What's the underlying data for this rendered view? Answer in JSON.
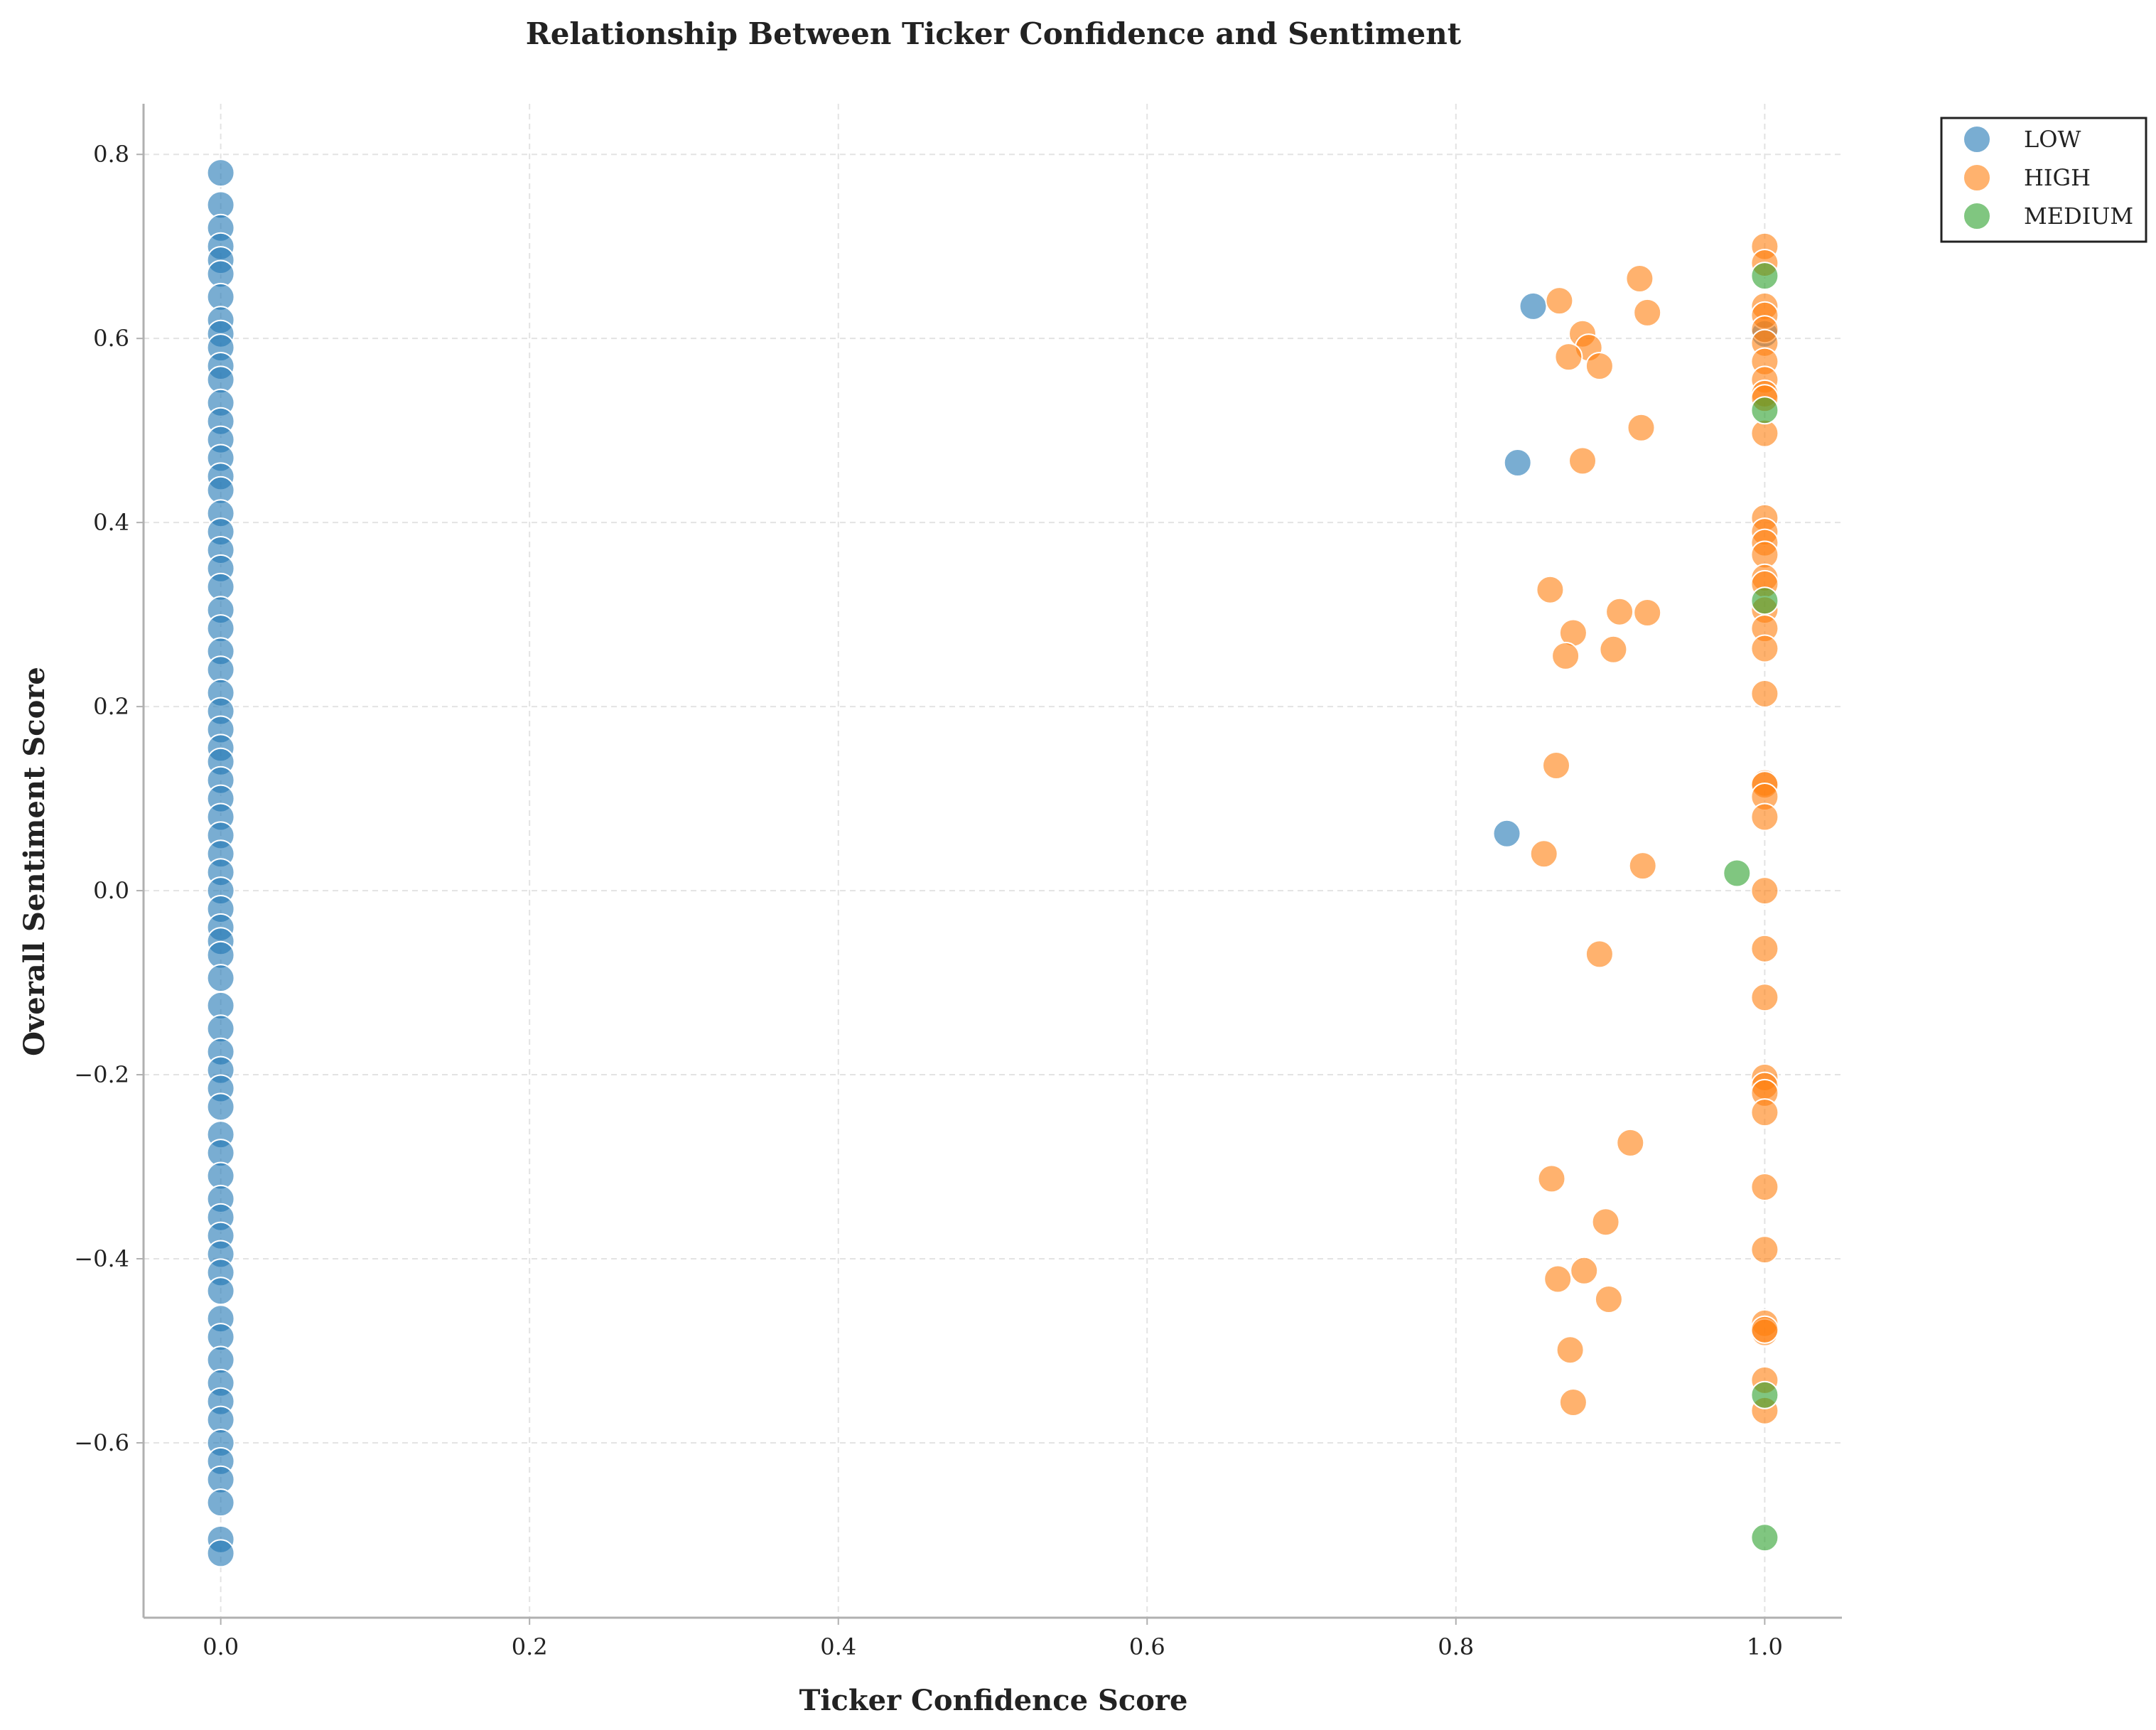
{
  "chart_data": {
    "type": "scatter",
    "title": "Relationship Between Ticker Confidence and Sentiment",
    "xlabel": "Ticker Confidence Score",
    "ylabel": "Overall Sentiment Score",
    "xlim": [
      -0.05,
      1.05
    ],
    "ylim": [
      -0.79,
      0.855
    ],
    "xticks": [
      0.0,
      0.2,
      0.4,
      0.6,
      0.8,
      1.0
    ],
    "xtick_labels": [
      "0.0",
      "0.2",
      "0.4",
      "0.6",
      "0.8",
      "1.0"
    ],
    "yticks": [
      -0.6,
      -0.4,
      -0.2,
      0.0,
      0.2,
      0.4,
      0.6,
      0.8
    ],
    "ytick_labels": [
      "−0.6",
      "−0.4",
      "−0.2",
      "0.0",
      "0.2",
      "0.4",
      "0.6",
      "0.8"
    ],
    "grid": true,
    "legend_position": "outside top-right",
    "series": [
      {
        "name": "LOW",
        "color": "#1f77b4",
        "points": [
          [
            0,
            0.78
          ],
          [
            0,
            0.745
          ],
          [
            0,
            0.72
          ],
          [
            0,
            0.7
          ],
          [
            0,
            0.685
          ],
          [
            0,
            0.67
          ],
          [
            0,
            0.645
          ],
          [
            0,
            0.62
          ],
          [
            0,
            0.605
          ],
          [
            0,
            0.59
          ],
          [
            0,
            0.57
          ],
          [
            0,
            0.555
          ],
          [
            0,
            0.53
          ],
          [
            0,
            0.51
          ],
          [
            0,
            0.49
          ],
          [
            0,
            0.47
          ],
          [
            0,
            0.45
          ],
          [
            0,
            0.435
          ],
          [
            0,
            0.41
          ],
          [
            0,
            0.39
          ],
          [
            0,
            0.37
          ],
          [
            0,
            0.35
          ],
          [
            0,
            0.33
          ],
          [
            0,
            0.305
          ],
          [
            0,
            0.285
          ],
          [
            0,
            0.26
          ],
          [
            0,
            0.24
          ],
          [
            0,
            0.215
          ],
          [
            0,
            0.195
          ],
          [
            0,
            0.175
          ],
          [
            0,
            0.155
          ],
          [
            0,
            0.14
          ],
          [
            0,
            0.12
          ],
          [
            0,
            0.1
          ],
          [
            0,
            0.08
          ],
          [
            0,
            0.06
          ],
          [
            0,
            0.04
          ],
          [
            0,
            0.02
          ],
          [
            0,
            0.0
          ],
          [
            0,
            -0.02
          ],
          [
            0,
            -0.04
          ],
          [
            0,
            -0.055
          ],
          [
            0,
            -0.07
          ],
          [
            0,
            -0.095
          ],
          [
            0,
            -0.125
          ],
          [
            0,
            -0.15
          ],
          [
            0,
            -0.175
          ],
          [
            0,
            -0.195
          ],
          [
            0,
            -0.215
          ],
          [
            0,
            -0.235
          ],
          [
            0,
            -0.265
          ],
          [
            0,
            -0.285
          ],
          [
            0,
            -0.31
          ],
          [
            0,
            -0.335
          ],
          [
            0,
            -0.355
          ],
          [
            0,
            -0.375
          ],
          [
            0,
            -0.395
          ],
          [
            0,
            -0.415
          ],
          [
            0,
            -0.435
          ],
          [
            0,
            -0.465
          ],
          [
            0,
            -0.485
          ],
          [
            0,
            -0.51
          ],
          [
            0,
            -0.535
          ],
          [
            0,
            -0.555
          ],
          [
            0,
            -0.575
          ],
          [
            0,
            -0.6
          ],
          [
            0,
            -0.62
          ],
          [
            0,
            -0.64
          ],
          [
            0,
            -0.665
          ],
          [
            0,
            -0.705
          ],
          [
            0,
            -0.72
          ],
          [
            0.85,
            0.635
          ],
          [
            0.84,
            0.465
          ],
          [
            0.833,
            0.062
          ],
          [
            1.0,
            0.605
          ]
        ]
      },
      {
        "name": "HIGH",
        "color": "#ff7f0e",
        "points": [
          [
            0.867,
            0.641
          ],
          [
            0.919,
            0.665
          ],
          [
            0.924,
            0.628
          ],
          [
            0.882,
            0.605
          ],
          [
            0.886,
            0.59
          ],
          [
            0.873,
            0.58
          ],
          [
            0.893,
            0.57
          ],
          [
            0.92,
            0.503
          ],
          [
            0.882,
            0.467
          ],
          [
            0.861,
            0.327
          ],
          [
            0.906,
            0.303
          ],
          [
            0.924,
            0.302
          ],
          [
            0.876,
            0.28
          ],
          [
            0.902,
            0.262
          ],
          [
            0.871,
            0.255
          ],
          [
            0.865,
            0.136
          ],
          [
            0.857,
            0.04
          ],
          [
            0.921,
            0.027
          ],
          [
            0.893,
            -0.069
          ],
          [
            0.913,
            -0.274
          ],
          [
            0.862,
            -0.313
          ],
          [
            0.897,
            -0.36
          ],
          [
            0.883,
            -0.413
          ],
          [
            0.866,
            -0.422
          ],
          [
            0.899,
            -0.444
          ],
          [
            0.874,
            -0.499
          ],
          [
            0.876,
            -0.556
          ],
          [
            1.0,
            0.7
          ],
          [
            1.0,
            0.682
          ],
          [
            1.0,
            0.635
          ],
          [
            1.0,
            0.625
          ],
          [
            1.0,
            0.61
          ],
          [
            1.0,
            0.595
          ],
          [
            1.0,
            0.575
          ],
          [
            1.0,
            0.555
          ],
          [
            1.0,
            0.54
          ],
          [
            1.0,
            0.535
          ],
          [
            1.0,
            0.497
          ],
          [
            1.0,
            0.405
          ],
          [
            1.0,
            0.39
          ],
          [
            1.0,
            0.378
          ],
          [
            1.0,
            0.365
          ],
          [
            1.0,
            0.34
          ],
          [
            1.0,
            0.333
          ],
          [
            1.0,
            0.305
          ],
          [
            1.0,
            0.285
          ],
          [
            1.0,
            0.263
          ],
          [
            1.0,
            0.214
          ],
          [
            1.0,
            0.117
          ],
          [
            1.0,
            0.115
          ],
          [
            1.0,
            0.102
          ],
          [
            1.0,
            0.08
          ],
          [
            1.0,
            0.0
          ],
          [
            1.0,
            -0.063
          ],
          [
            1.0,
            -0.116
          ],
          [
            1.0,
            -0.203
          ],
          [
            1.0,
            -0.212
          ],
          [
            1.0,
            -0.22
          ],
          [
            1.0,
            -0.241
          ],
          [
            1.0,
            -0.322
          ],
          [
            1.0,
            -0.39
          ],
          [
            1.0,
            -0.47
          ],
          [
            1.0,
            -0.48
          ],
          [
            1.0,
            -0.477
          ],
          [
            1.0,
            -0.532
          ],
          [
            1.0,
            -0.565
          ]
        ]
      },
      {
        "name": "MEDIUM",
        "color": "#2ca02c",
        "points": [
          [
            1.0,
            0.668
          ],
          [
            1.0,
            0.522
          ],
          [
            1.0,
            0.315
          ],
          [
            0.982,
            0.019
          ],
          [
            1.0,
            -0.548
          ],
          [
            1.0,
            -0.703
          ]
        ]
      }
    ]
  }
}
